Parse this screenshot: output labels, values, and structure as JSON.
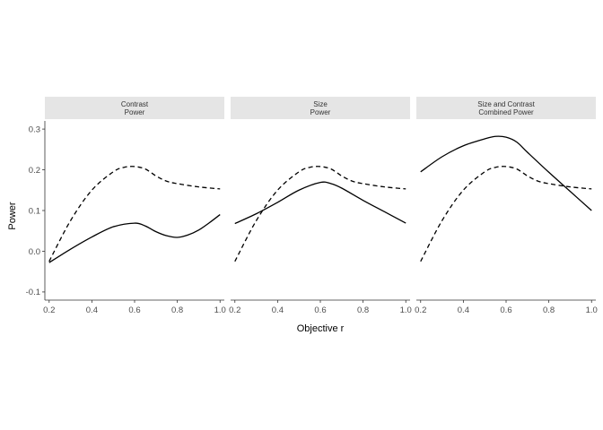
{
  "chart_data": {
    "type": "line",
    "facet": "columns",
    "xlabel": "Objective r",
    "ylabel": "Power",
    "xlim": [
      0.18,
      1.02
    ],
    "ylim": [
      -0.12,
      0.32
    ],
    "xticks": [
      0.2,
      0.4,
      0.6,
      0.8,
      1.0
    ],
    "xtick_labels": [
      "0.2",
      "0.4",
      "0.6",
      "0.8",
      "1.0"
    ],
    "yticks": [
      -0.1,
      0.0,
      0.1,
      0.2,
      0.3
    ],
    "ytick_labels": [
      "-0.1",
      "0.0",
      "0.1",
      "0.2",
      "0.3"
    ],
    "grid": false,
    "legend": "none",
    "line_color": "#000000",
    "strip_color": "#e5e5e5",
    "panels": [
      {
        "strip": [
          "Contrast",
          "Power"
        ],
        "series": [
          {
            "style": "solid",
            "x": [
              0.2,
              0.3,
              0.4,
              0.5,
              0.6,
              0.65,
              0.7,
              0.75,
              0.8,
              0.85,
              0.9,
              0.95,
              1.0
            ],
            "y": [
              -0.028,
              0.005,
              0.035,
              0.06,
              0.069,
              0.062,
              0.048,
              0.038,
              0.034,
              0.04,
              0.052,
              0.07,
              0.09
            ]
          },
          {
            "style": "dashed",
            "x": [
              0.2,
              0.3,
              0.4,
              0.5,
              0.55,
              0.6,
              0.65,
              0.7,
              0.75,
              0.8,
              0.9,
              1.0
            ],
            "y": [
              -0.025,
              0.075,
              0.15,
              0.195,
              0.206,
              0.208,
              0.202,
              0.185,
              0.172,
              0.166,
              0.158,
              0.153
            ]
          }
        ]
      },
      {
        "strip": [
          "Size",
          "Power"
        ],
        "series": [
          {
            "style": "solid",
            "x": [
              0.2,
              0.3,
              0.4,
              0.5,
              0.6,
              0.65,
              0.7,
              0.8,
              0.9,
              1.0
            ],
            "y": [
              0.068,
              0.092,
              0.12,
              0.15,
              0.169,
              0.166,
              0.155,
              0.125,
              0.097,
              0.069
            ]
          },
          {
            "style": "dashed",
            "x": [
              0.2,
              0.3,
              0.4,
              0.5,
              0.55,
              0.6,
              0.65,
              0.7,
              0.75,
              0.8,
              0.9,
              1.0
            ],
            "y": [
              -0.025,
              0.075,
              0.15,
              0.195,
              0.206,
              0.208,
              0.202,
              0.185,
              0.172,
              0.166,
              0.158,
              0.153
            ]
          }
        ]
      },
      {
        "strip": [
          "Size and Contrast",
          "Combined Power"
        ],
        "series": [
          {
            "style": "solid",
            "x": [
              0.2,
              0.3,
              0.4,
              0.5,
              0.55,
              0.6,
              0.65,
              0.7,
              0.8,
              0.9,
              1.0
            ],
            "y": [
              0.195,
              0.232,
              0.259,
              0.276,
              0.282,
              0.28,
              0.268,
              0.243,
              0.194,
              0.147,
              0.1
            ]
          },
          {
            "style": "dashed",
            "x": [
              0.2,
              0.3,
              0.4,
              0.5,
              0.55,
              0.6,
              0.65,
              0.7,
              0.75,
              0.8,
              0.9,
              1.0
            ],
            "y": [
              -0.025,
              0.075,
              0.15,
              0.195,
              0.206,
              0.208,
              0.202,
              0.185,
              0.172,
              0.166,
              0.158,
              0.153
            ]
          }
        ]
      }
    ]
  }
}
